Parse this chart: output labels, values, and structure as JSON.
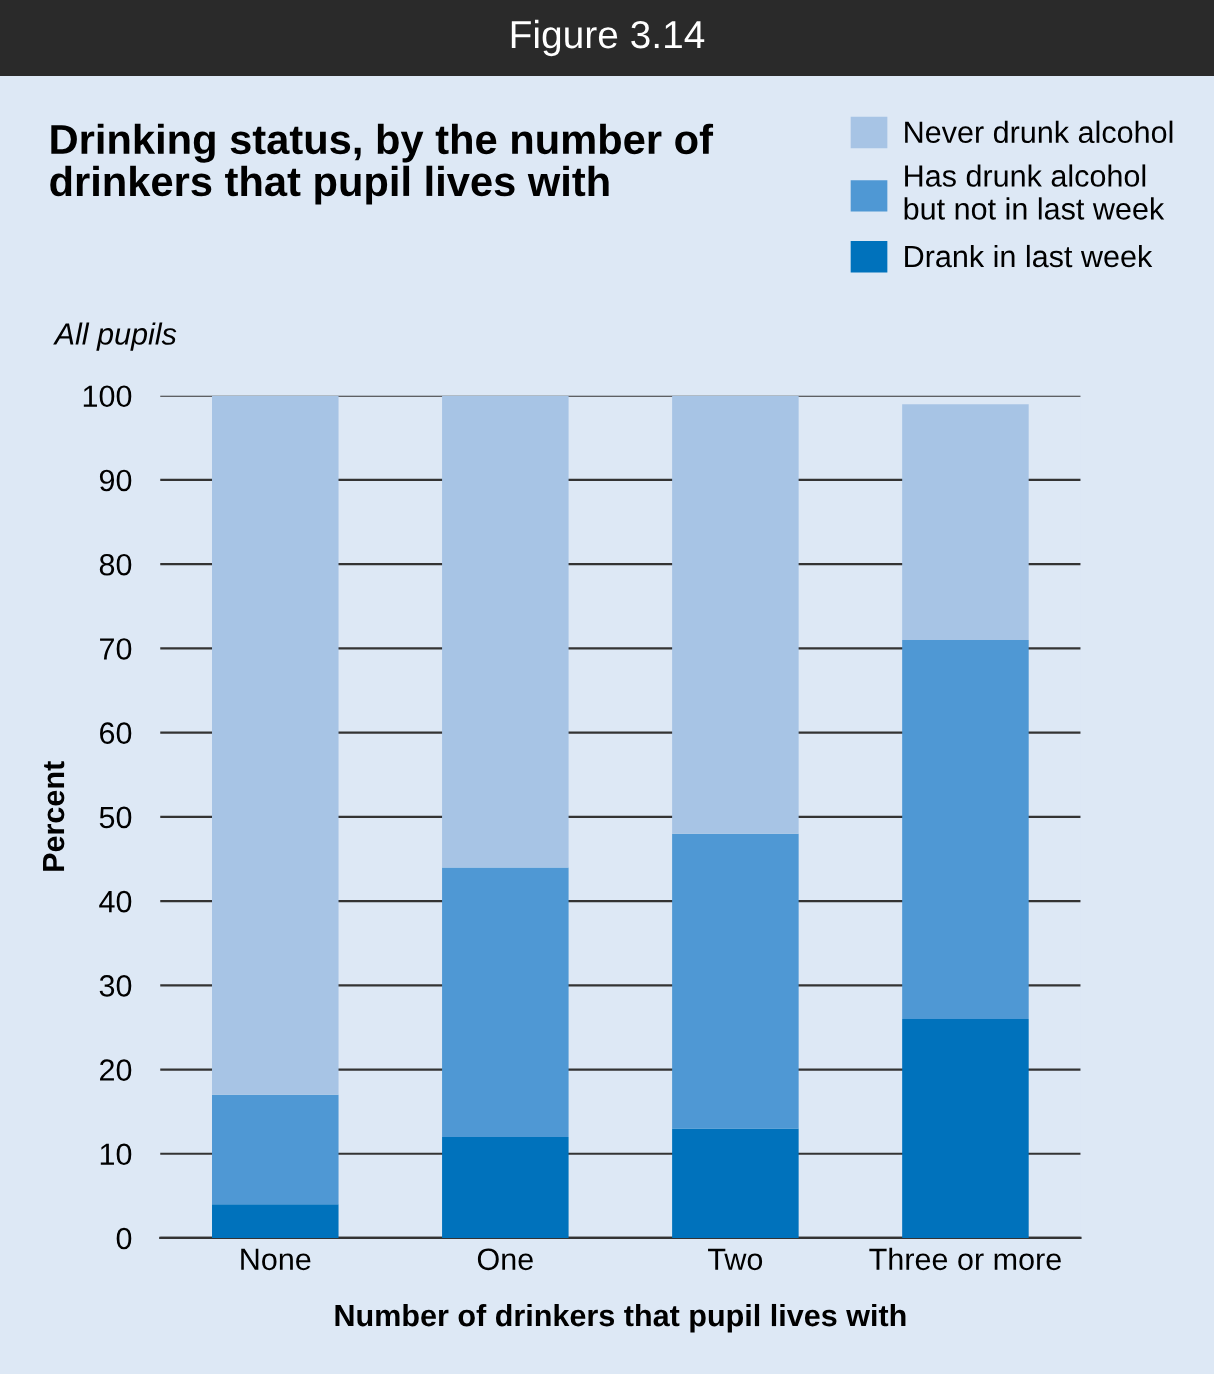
{
  "chart_data": {
    "type": "bar",
    "title": "Drinking status, by the number of drinkers that pupil lives with",
    "subtitle": "All pupils",
    "xlabel": "Number of drinkers that pupil lives with",
    "ylabel": "Percent",
    "annotations": [
      "Figure 3.14"
    ],
    "categories": [
      "None",
      "One",
      "Two",
      "Three or more"
    ],
    "stacked": true,
    "series": [
      {
        "name": "Drank in last week",
        "color": "#0072bc",
        "values": [
          4,
          12,
          13,
          26
        ]
      },
      {
        "name": "Has drunk alcohol\nbut not in last week",
        "color": "#4f98d4",
        "values": [
          13,
          32,
          35,
          45
        ]
      },
      {
        "name": "Never drunk alcohol",
        "color": "#a7c4e5",
        "values": [
          83,
          56,
          52,
          28
        ]
      }
    ],
    "ylim": [
      0,
      100
    ],
    "yticks": [
      0,
      10,
      20,
      30,
      40,
      50,
      60,
      70,
      80,
      90,
      100
    ],
    "grid": "y",
    "legend": "top right"
  }
}
